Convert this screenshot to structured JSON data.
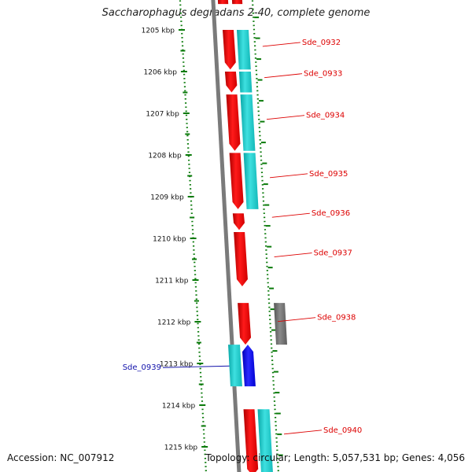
{
  "title": "Saccharophagus degradans 2-40, complete genome",
  "footer": {
    "accession": "Accession: NC_007912",
    "topology": "Topology: circular; Length: 5,057,531 bp; Genes: 4,056"
  },
  "scale": {
    "unit": "kbp",
    "ticks": [
      {
        "label": "1205 kbp",
        "kbp": 1205
      },
      {
        "label": "1206 kbp",
        "kbp": 1206
      },
      {
        "label": "1207 kbp",
        "kbp": 1207
      },
      {
        "label": "1208 kbp",
        "kbp": 1208
      },
      {
        "label": "1209 kbp",
        "kbp": 1209
      },
      {
        "label": "1210 kbp",
        "kbp": 1210
      },
      {
        "label": "1211 kbp",
        "kbp": 1211
      },
      {
        "label": "1212 kbp",
        "kbp": 1212
      },
      {
        "label": "1213 kbp",
        "kbp": 1213
      },
      {
        "label": "1214 kbp",
        "kbp": 1214
      },
      {
        "label": "1215 kbp",
        "kbp": 1215
      }
    ]
  },
  "genes": [
    {
      "name": "Sde_0932",
      "strand": "forward",
      "start_kbp": 1205.0,
      "end_kbp": 1205.95
    },
    {
      "name": "Sde_0933",
      "strand": "forward",
      "start_kbp": 1206.0,
      "end_kbp": 1206.5
    },
    {
      "name": "Sde_0934",
      "strand": "forward",
      "start_kbp": 1206.55,
      "end_kbp": 1207.9
    },
    {
      "name": "Sde_0935",
      "strand": "forward",
      "start_kbp": 1207.95,
      "end_kbp": 1209.3
    },
    {
      "name": "Sde_0936",
      "strand": "forward",
      "start_kbp": 1209.4,
      "end_kbp": 1209.8
    },
    {
      "name": "Sde_0937",
      "strand": "forward",
      "start_kbp": 1209.85,
      "end_kbp": 1211.15
    },
    {
      "name": "Sde_0938",
      "strand": "forward",
      "start_kbp": 1211.55,
      "end_kbp": 1212.55
    },
    {
      "name": "Sde_0939",
      "strand": "reverse",
      "start_kbp": 1212.55,
      "end_kbp": 1213.55
    },
    {
      "name": "Sde_0940",
      "strand": "forward",
      "start_kbp": 1214.1,
      "end_kbp": 1215.7
    }
  ],
  "colors": {
    "forward_cds": "#ee0000",
    "reverse_cds": "#0000ee",
    "feature_cyan": "#14c6c6",
    "feature_gray": "#6f6f6f",
    "backbone": "#7a7a7a",
    "ruler": "#0a7a0a",
    "forward_label": "#dd0000",
    "reverse_label": "#1010aa"
  }
}
